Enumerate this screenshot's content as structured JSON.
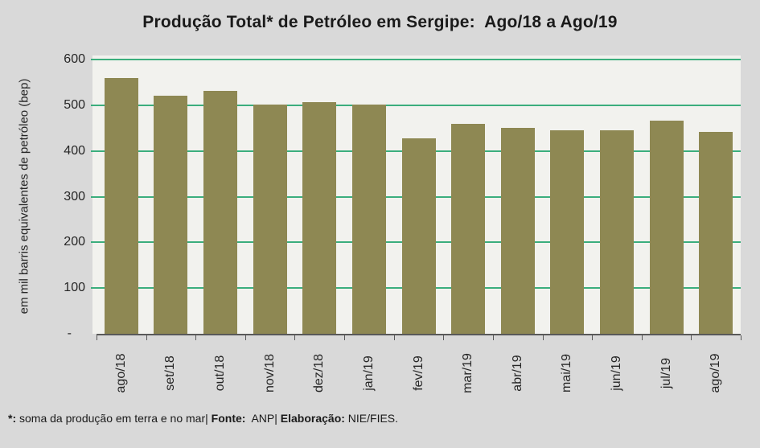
{
  "title": "Produção Total* de Petróleo em Sergipe:  Ago/18 a Ago/19",
  "footnote": {
    "parts": [
      {
        "text": "*:",
        "bold": true
      },
      {
        "text": " soma da produção em terra e no mar| ",
        "bold": false
      },
      {
        "text": "Fonte:",
        "bold": true
      },
      {
        "text": "  ANP| ",
        "bold": false
      },
      {
        "text": "Elaboração:",
        "bold": true
      },
      {
        "text": " NIE/FIES.",
        "bold": false
      }
    ]
  },
  "chart_data": {
    "type": "bar",
    "title": "Produção Total* de Petróleo em Sergipe:  Ago/18 a Ago/19",
    "categories": [
      "ago/18",
      "set/18",
      "out/18",
      "nov/18",
      "dez/18",
      "jan/19",
      "fev/19",
      "mar/19",
      "abr/19",
      "mai/19",
      "jun/19",
      "jul/19",
      "ago/19"
    ],
    "values": [
      560,
      521,
      532,
      501,
      507,
      502,
      428,
      459,
      451,
      446,
      445,
      467,
      441
    ],
    "xlabel": "",
    "ylabel": "em mil barris equivalentes de petróleo (bep)",
    "ylim": [
      0,
      600
    ],
    "ytick_interval": 100,
    "yticks": [
      {
        "value": 600,
        "label": "600"
      },
      {
        "value": 500,
        "label": "500"
      },
      {
        "value": 400,
        "label": "400"
      },
      {
        "value": 300,
        "label": "300"
      },
      {
        "value": 200,
        "label": "200"
      },
      {
        "value": 100,
        "label": "100"
      },
      {
        "value": 0,
        "label": "-"
      }
    ],
    "grid": true,
    "legend": "none",
    "colors": {
      "bar": "#8E8853",
      "gridline": "#3BAE7D",
      "plot_bg": "#F2F2EE",
      "outer_bg": "#D9D9D9",
      "axis": "#595959",
      "text": "#1A1A1A"
    }
  }
}
